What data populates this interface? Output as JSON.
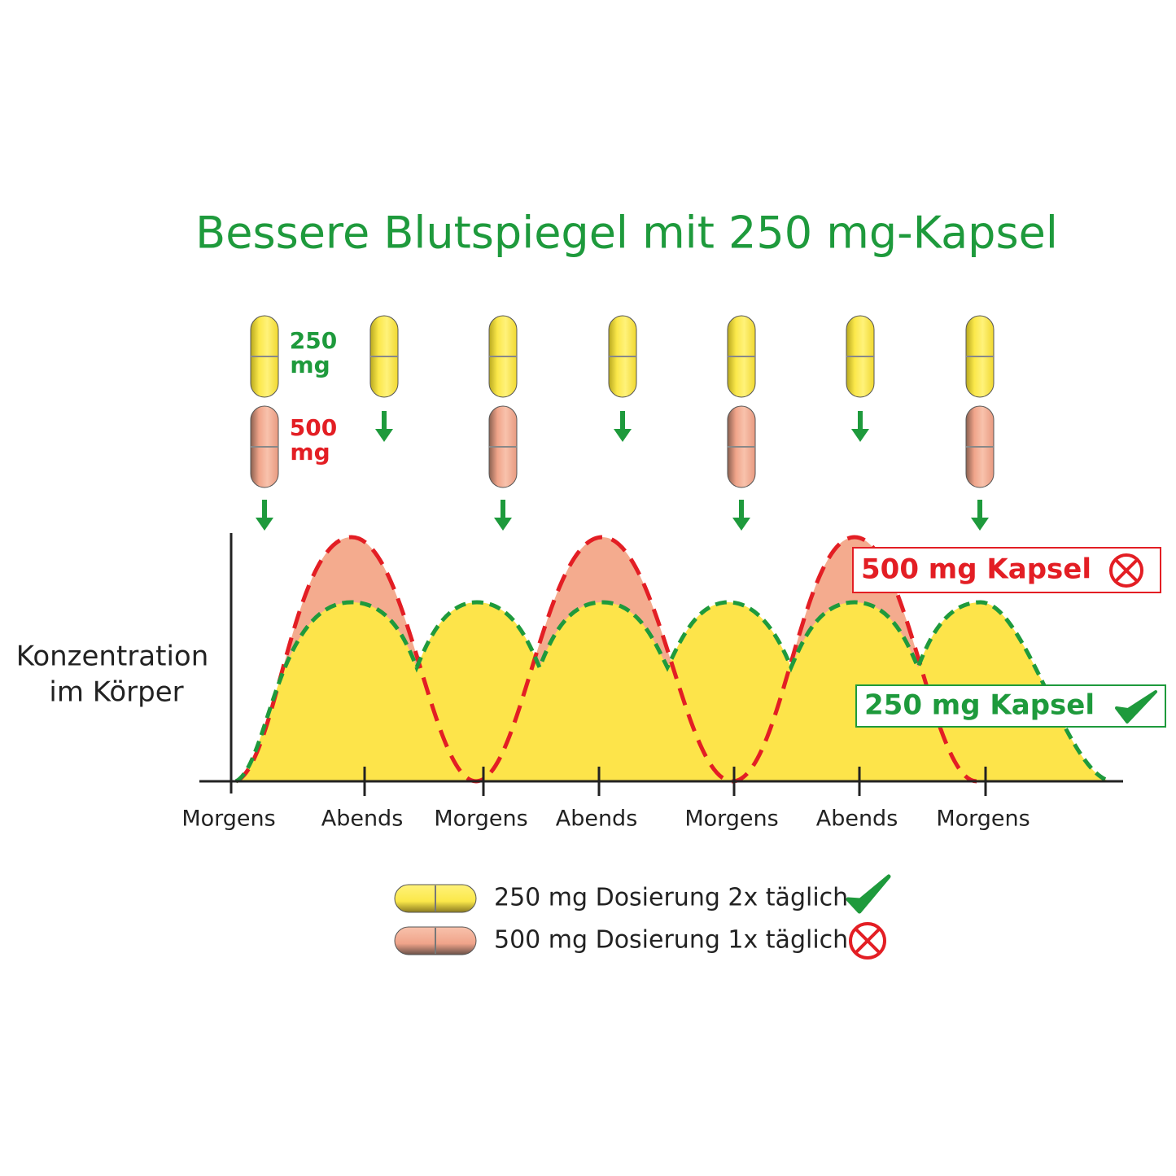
{
  "title": "Bessere Blutspiegel mit 250 mg-Kapsel",
  "capsule_labels": {
    "low": {
      "dose": "250",
      "unit": "mg"
    },
    "high": {
      "dose": "500",
      "unit": "mg"
    }
  },
  "y_axis_label": [
    "Konzentration",
    "im Körper"
  ],
  "x_labels": [
    "Morgens",
    "Abends",
    "Morgens",
    "Abends",
    "Morgens",
    "Abends",
    "Morgens"
  ],
  "tags": {
    "high": "500 mg Kapsel",
    "low": "250 mg Kapsel"
  },
  "legend": [
    "250 mg Dosierung 2x täglich",
    "500 mg Dosierung 1x täglich"
  ]
}
